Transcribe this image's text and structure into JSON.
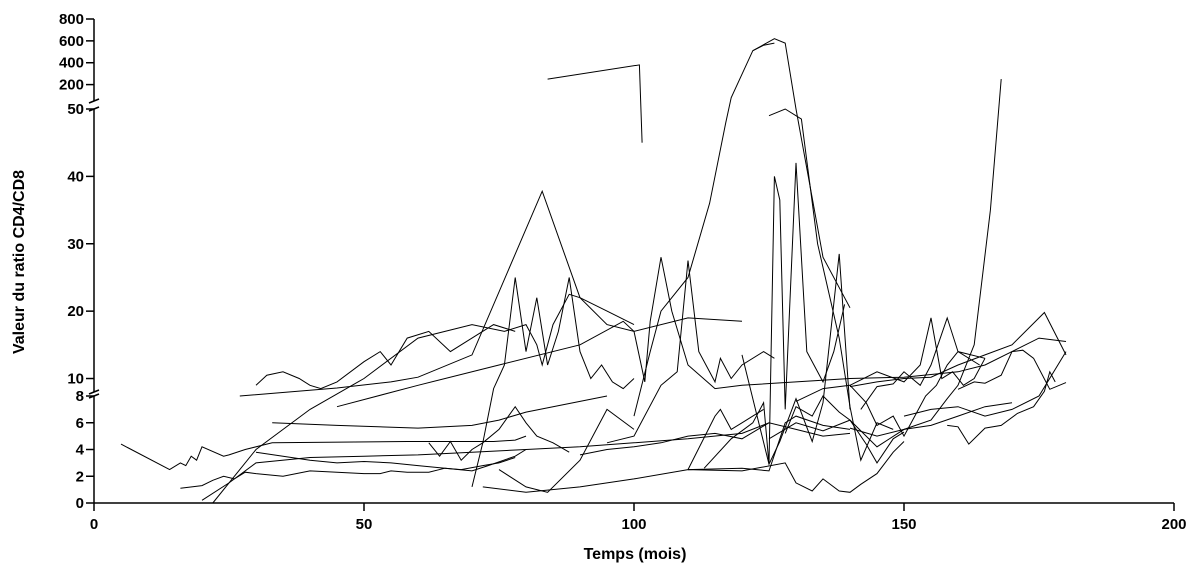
{
  "chart_data": {
    "type": "line",
    "title": "",
    "xlabel": "Temps (mois)",
    "ylabel": "Valeur du ratio CD4/CD8",
    "xlim": [
      0,
      200
    ],
    "x_ticks": [
      0,
      50,
      100,
      150,
      200
    ],
    "y_axis_segments": [
      {
        "range": [
          0,
          8
        ],
        "ticks": [
          0,
          2,
          4,
          6,
          8
        ]
      },
      {
        "range": [
          8,
          50
        ],
        "ticks": [
          10,
          20,
          30,
          40,
          50
        ]
      },
      {
        "range": [
          50,
          800
        ],
        "ticks": [
          200,
          400,
          600,
          800
        ]
      }
    ],
    "y_axis_breaks": [
      8,
      50
    ],
    "grid": false,
    "legend": "none",
    "series": [
      {
        "x": [
          5,
          14,
          16,
          17,
          18,
          19,
          20,
          24,
          25,
          28,
          33,
          58,
          74,
          78,
          80
        ],
        "y": [
          4.4,
          2.5,
          3.0,
          2.8,
          3.5,
          3.2,
          4.2,
          3.5,
          3.6,
          4.0,
          4.5,
          4.6,
          4.6,
          4.7,
          5.0
        ]
      },
      {
        "x": [
          16,
          20,
          22,
          24,
          26,
          28,
          30,
          35,
          40,
          45,
          50,
          53,
          55,
          58,
          62,
          65,
          70,
          73,
          78,
          80
        ],
        "y": [
          1.1,
          1.3,
          1.7,
          2.0,
          1.8,
          2.3,
          2.2,
          2.0,
          2.4,
          2.3,
          2.2,
          2.2,
          2.4,
          2.3,
          2.3,
          2.6,
          2.4,
          2.8,
          3.5,
          4.0
        ]
      },
      {
        "x": [
          20,
          25,
          30,
          40,
          50,
          60,
          70,
          80,
          90,
          100,
          110,
          120,
          125
        ],
        "y": [
          0.2,
          1.5,
          3.0,
          3.4,
          3.5,
          3.6,
          3.8,
          4.0,
          4.2,
          4.5,
          4.8,
          5.2,
          6.0
        ]
      },
      {
        "x": [
          22,
          30,
          40,
          50,
          60,
          70,
          76,
          80,
          82,
          83,
          85,
          88,
          90,
          95,
          100
        ],
        "y": [
          0,
          4,
          7,
          10,
          16,
          18,
          17,
          18,
          15,
          12,
          18,
          22.5,
          22,
          20,
          18
        ]
      },
      {
        "x": [
          30,
          40,
          45,
          50,
          55,
          60,
          65,
          68,
          72,
          75,
          78
        ],
        "y": [
          3.8,
          3.2,
          3.0,
          3.1,
          3.0,
          2.8,
          2.6,
          2.5,
          2.8,
          3.0,
          3.4
        ]
      },
      {
        "x": [
          30,
          32,
          35,
          38,
          40,
          42,
          45,
          50,
          53,
          55,
          58,
          62,
          66,
          70,
          74,
          78
        ],
        "y": [
          9.0,
          10.5,
          11.0,
          10.0,
          9.0,
          8.5,
          9.5,
          12.5,
          14,
          12,
          16,
          17,
          14,
          16,
          18,
          17
        ]
      },
      {
        "x": [
          33,
          45,
          60,
          70,
          75,
          80,
          85,
          90,
          95
        ],
        "y": [
          6.0,
          5.8,
          5.6,
          5.8,
          6.2,
          6.8,
          7.2,
          7.6,
          8.0
        ]
      },
      {
        "x": [
          27,
          45,
          55,
          60,
          70,
          83,
          90,
          95,
          100,
          110,
          120
        ],
        "y": [
          8.0,
          8.6,
          9.5,
          10.2,
          13.5,
          37.8,
          22,
          18,
          17,
          19,
          18.5
        ]
      },
      {
        "x": [
          45,
          60,
          75,
          90,
          98,
          100,
          102,
          103,
          105,
          107,
          110,
          115,
          120,
          130,
          140,
          150,
          160,
          165,
          170,
          175,
          180
        ],
        "y": [
          7.2,
          9.0,
          12.0,
          15.0,
          18.5,
          17,
          9.5,
          18.5,
          28,
          20,
          12,
          8.5,
          9.0,
          9.5,
          10,
          10.2,
          11,
          12,
          14,
          16,
          15.5
        ]
      },
      {
        "x": [
          62,
          64,
          66,
          68,
          70,
          72,
          75,
          78,
          80,
          82,
          85,
          88
        ],
        "y": [
          4.5,
          3.5,
          4.6,
          3.2,
          4.0,
          4.5,
          5.5,
          7.2,
          6.0,
          5.0,
          4.5,
          3.8
        ]
      },
      {
        "x": [
          70,
          72,
          74,
          76,
          78,
          80,
          82,
          84,
          86,
          88,
          90,
          92,
          94,
          96,
          98,
          100
        ],
        "y": [
          1.2,
          4.5,
          8.5,
          12,
          25,
          14,
          22,
          12,
          17,
          25,
          14,
          10,
          12,
          9.5,
          8.5,
          10
        ]
      },
      {
        "x": [
          72,
          80,
          90,
          100,
          110,
          120,
          128,
          130,
          133,
          135,
          138,
          140,
          142,
          145,
          148,
          150
        ],
        "y": [
          1.2,
          0.8,
          1.2,
          1.8,
          2.5,
          2.4,
          3.0,
          1.5,
          0.9,
          1.8,
          0.9,
          0.8,
          1.4,
          2.2,
          3.8,
          4.6
        ]
      },
      {
        "x": [
          75,
          80,
          84,
          90,
          95,
          100
        ],
        "y": [
          2.5,
          1.2,
          0.8,
          3.2,
          7.0,
          5.5
        ]
      },
      {
        "x": [
          84,
          101,
          101.5
        ],
        "y": [
          250,
          380,
          45
        ]
      },
      {
        "x": [
          90,
          95,
          100,
          105,
          110,
          115,
          120,
          125,
          130,
          135,
          140
        ],
        "y": [
          3.6,
          4.0,
          4.2,
          4.5,
          5.0,
          5.2,
          4.8,
          6.0,
          5.5,
          5.0,
          5.2
        ]
      },
      {
        "x": [
          95,
          100,
          105,
          108,
          110,
          112,
          115,
          116,
          118,
          120,
          124,
          126
        ],
        "y": [
          4.5,
          5.0,
          9.0,
          11.0,
          27.5,
          14,
          9.5,
          13,
          10,
          12,
          14,
          13
        ]
      },
      {
        "x": [
          100,
          103,
          105,
          110,
          114,
          117,
          118,
          122,
          124,
          126
        ],
        "y": [
          6.5,
          14,
          20,
          25,
          36,
          48,
          80,
          510,
          560,
          580
        ]
      },
      {
        "x": [
          110,
          115,
          116,
          118,
          120,
          122,
          124
        ],
        "y": [
          2.5,
          6.5,
          7.0,
          5.5,
          6.0,
          6.5,
          7.0
        ]
      },
      {
        "x": [
          110,
          120,
          125,
          128,
          130,
          135,
          140
        ],
        "y": [
          2.5,
          2.6,
          2.4,
          6.0,
          6.5,
          5.8,
          5.5
        ]
      },
      {
        "x": [
          113,
          118,
          122,
          124,
          125,
          126,
          127,
          128,
          130,
          132,
          135,
          137,
          139
        ],
        "y": [
          2.6,
          4.8,
          6.0,
          7.5,
          2.9,
          40,
          36.5,
          7.0,
          42,
          14,
          9.5,
          14,
          21
        ]
      },
      {
        "x": [
          120,
          125,
          127,
          130,
          133,
          135,
          138,
          140
        ],
        "y": [
          13.5,
          2.9,
          4.6,
          7.8,
          4.6,
          7.5,
          28.5,
          7.0
        ]
      },
      {
        "x": [
          122,
          126,
          128,
          130,
          135,
          140
        ],
        "y": [
          510,
          620,
          580,
          50,
          28,
          20.5
        ]
      },
      {
        "x": [
          125,
          128,
          131,
          134,
          138,
          140,
          142,
          145,
          148
        ],
        "y": [
          49,
          50,
          48.5,
          30,
          16,
          7.2,
          3.2,
          6.0,
          5.5
        ]
      },
      {
        "x": [
          125,
          130,
          135,
          140,
          145,
          150,
          155,
          160,
          165,
          170
        ],
        "y": [
          4.8,
          6.0,
          5.4,
          6.2,
          4.2,
          5.5,
          5.8,
          6.5,
          7.2,
          7.5
        ]
      },
      {
        "x": [
          128,
          130,
          133,
          135,
          138,
          140,
          143,
          145,
          148,
          150
        ],
        "y": [
          5.2,
          7.2,
          6.5,
          8.0,
          6.8,
          6.2,
          4.4,
          3.0,
          4.8,
          5.3
        ]
      },
      {
        "x": [
          130,
          135,
          140,
          145,
          150,
          153,
          155,
          157,
          159,
          161,
          163,
          165
        ],
        "y": [
          7.6,
          8.5,
          9.0,
          11,
          9.5,
          12,
          19,
          10,
          11,
          9.0,
          10,
          13
        ]
      },
      {
        "x": [
          140,
          143,
          145,
          148,
          150,
          152,
          154,
          156,
          158,
          160,
          165
        ],
        "y": [
          9.0,
          7.5,
          5.8,
          6.5,
          5.0,
          6.5,
          8.0,
          9.0,
          12,
          14,
          13
        ]
      },
      {
        "x": [
          140,
          145,
          150,
          155,
          158,
          160,
          163,
          166,
          168
        ],
        "y": [
          5.6,
          5.0,
          5.5,
          6.2,
          7.8,
          9.0,
          15,
          35,
          250
        ]
      },
      {
        "x": [
          142,
          145,
          148,
          150,
          153,
          155,
          158,
          160,
          164
        ],
        "y": [
          7.0,
          8.8,
          9.2,
          11,
          9.0,
          12,
          19,
          14,
          12
        ]
      },
      {
        "x": [
          150,
          155,
          160,
          165,
          170,
          175,
          180
        ],
        "y": [
          6.5,
          7.0,
          7.2,
          6.5,
          7.0,
          8.0,
          14
        ]
      },
      {
        "x": [
          158,
          160,
          162,
          165,
          168,
          171,
          174,
          176,
          177,
          178
        ],
        "y": [
          5.8,
          5.7,
          4.4,
          5.6,
          5.8,
          6.7,
          7.2,
          8.1,
          11,
          9.5
        ]
      },
      {
        "x": [
          160,
          163,
          165,
          168,
          170,
          172,
          174,
          177,
          180
        ],
        "y": [
          8.4,
          9.5,
          9.3,
          10.5,
          14,
          14.2,
          13,
          8.4,
          9.4
        ]
      },
      {
        "x": [
          140,
          145,
          150,
          155,
          160,
          165,
          170,
          176,
          180
        ],
        "y": [
          8.8,
          9.5,
          10,
          10.2,
          12,
          13.5,
          15,
          19.8,
          13.5
        ]
      }
    ]
  }
}
